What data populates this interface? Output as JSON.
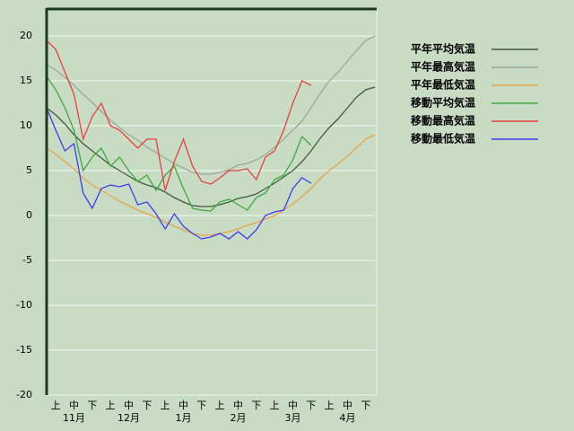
{
  "chart_data": {
    "type": "line",
    "dekads": [
      "上",
      "中",
      "下",
      "上",
      "中",
      "下",
      "上",
      "中",
      "下",
      "上",
      "中",
      "下",
      "上",
      "中",
      "下",
      "上",
      "中",
      "下"
    ],
    "months": [
      "11月",
      "12月",
      "1月",
      "2月",
      "3月",
      "4月"
    ],
    "ylim": [
      -20,
      23
    ],
    "yticks": [
      20,
      15,
      10,
      5,
      0,
      -5,
      -10,
      -15,
      -20
    ],
    "grid": true,
    "series": [
      {
        "name": "平年平均気温",
        "color": "#3f5a3f",
        "values": [
          12,
          11.2,
          10.2,
          9,
          8,
          7.2,
          6.4,
          5.6,
          5,
          4.4,
          3.8,
          3.4,
          3.1,
          2.6,
          2,
          1.5,
          1.1,
          1,
          1,
          1.2,
          1.5,
          1.9,
          2.1,
          2.4,
          3,
          3.6,
          4.3,
          5,
          6,
          7.2,
          8.6,
          9.8,
          10.8,
          12,
          13.2,
          14,
          14.3
        ]
      },
      {
        "name": "平年最高気温",
        "color": "#9aa89a",
        "values": [
          16.8,
          16.2,
          15.4,
          14.5,
          13.5,
          12.6,
          11.6,
          10.6,
          9.8,
          9,
          8.4,
          7.6,
          7,
          6.4,
          5.8,
          5.3,
          4.8,
          4.6,
          4.6,
          4.8,
          5.1,
          5.6,
          5.8,
          6.2,
          6.8,
          7.6,
          8.5,
          9.5,
          10.5,
          12,
          13.6,
          15,
          16,
          17.2,
          18.4,
          19.5,
          20
        ]
      },
      {
        "name": "平年最低気温",
        "color": "#e8a448",
        "values": [
          7.5,
          6.8,
          6,
          5.2,
          4.2,
          3.4,
          2.8,
          2.2,
          1.6,
          1.1,
          0.6,
          0.2,
          -0.2,
          -0.7,
          -1.2,
          -1.6,
          -2,
          -2.2,
          -2.2,
          -2,
          -1.8,
          -1.5,
          -1.1,
          -0.8,
          -0.4,
          0,
          0.6,
          1.3,
          2.1,
          3,
          4.1,
          5,
          5.8,
          6.6,
          7.6,
          8.5,
          9
        ]
      },
      {
        "name": "移動平均気温",
        "color": "#3caa3c",
        "values": [
          15.5,
          14,
          12,
          9.5,
          5,
          6.5,
          7.5,
          5.5,
          6.5,
          5,
          3.8,
          4.5,
          2.8,
          4.5,
          5.5,
          3,
          0.8,
          0.6,
          0.5,
          1.5,
          1.8,
          1.2,
          0.6,
          2,
          2.5,
          4,
          4.5,
          6.2,
          8.8,
          7.8,
          null,
          null,
          null,
          null,
          null,
          null,
          null
        ]
      },
      {
        "name": "移動最高気温",
        "color": "#e84040",
        "values": [
          19.5,
          18.5,
          16,
          13.5,
          8.5,
          11,
          12.5,
          10,
          9.5,
          8.5,
          7.5,
          8.5,
          8.5,
          2.8,
          6,
          8.5,
          5.5,
          3.8,
          3.5,
          4.2,
          5,
          5,
          5.2,
          4,
          6.5,
          7.2,
          9.5,
          12.5,
          15,
          14.5,
          null,
          null,
          null,
          null,
          null,
          null,
          null
        ]
      },
      {
        "name": "移動最低気温",
        "color": "#3c3cf0",
        "values": [
          12,
          9.5,
          7.2,
          8,
          2.5,
          0.8,
          3,
          3.4,
          3.2,
          3.5,
          1.2,
          1.5,
          0.2,
          -1.5,
          0.2,
          -1.2,
          -2,
          -2.6,
          -2.4,
          -2,
          -2.6,
          -1.8,
          -2.6,
          -1.6,
          0,
          0.4,
          0.6,
          3,
          4.2,
          3.6,
          null,
          null,
          null,
          null,
          null,
          null,
          null
        ]
      }
    ]
  }
}
